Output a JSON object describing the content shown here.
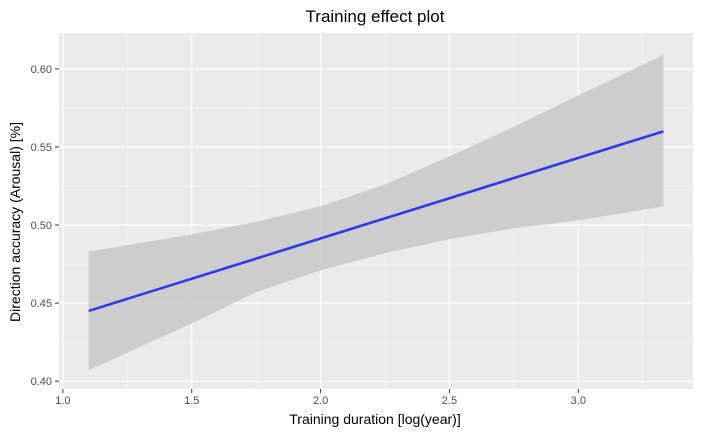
{
  "chart_data": {
    "type": "line",
    "title": "Training effect plot",
    "xlabel": "Training duration [log(year)]",
    "ylabel": "Direction accuracy (Arousal) [%]",
    "xlim": [
      0.985,
      3.445
    ],
    "ylim": [
      0.395,
      0.623
    ],
    "x_ticks": [
      1.0,
      1.5,
      2.0,
      2.5,
      3.0
    ],
    "x_tick_labels": [
      "1.0",
      "1.5",
      "2.0",
      "2.5",
      "3.0"
    ],
    "y_ticks": [
      0.4,
      0.45,
      0.5,
      0.55,
      0.6
    ],
    "y_tick_labels": [
      "0.40",
      "0.45",
      "0.50",
      "0.55",
      "0.60"
    ],
    "grid": true,
    "series": [
      {
        "name": "fit",
        "color": "#2b3de6",
        "x": [
          1.1,
          3.33
        ],
        "y": [
          0.445,
          0.56
        ]
      }
    ],
    "confidence_band": {
      "color": "#c8c8c8",
      "x": [
        1.1,
        1.5,
        1.75,
        2.0,
        2.25,
        2.5,
        2.75,
        3.0,
        3.33
      ],
      "lower": [
        0.407,
        0.437,
        0.457,
        0.471,
        0.482,
        0.491,
        0.498,
        0.503,
        0.512
      ],
      "upper": [
        0.483,
        0.494,
        0.502,
        0.512,
        0.526,
        0.544,
        0.563,
        0.583,
        0.609
      ]
    }
  }
}
